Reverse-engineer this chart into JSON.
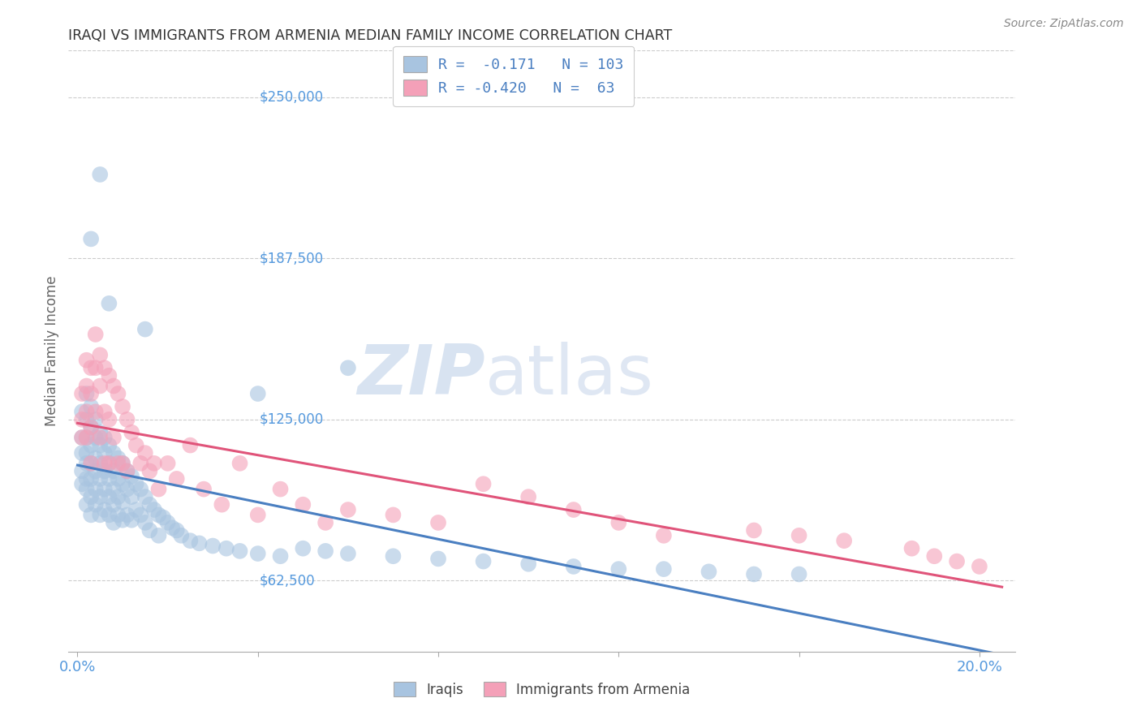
{
  "title": "IRAQI VS IMMIGRANTS FROM ARMENIA MEDIAN FAMILY INCOME CORRELATION CHART",
  "source": "Source: ZipAtlas.com",
  "ylabel": "Median Family Income",
  "ytick_labels": [
    "$62,500",
    "$125,000",
    "$187,500",
    "$250,000"
  ],
  "ytick_values": [
    62500,
    125000,
    187500,
    250000
  ],
  "ymin": 35000,
  "ymax": 268000,
  "xmin": -0.002,
  "xmax": 0.208,
  "watermark_zip": "ZIP",
  "watermark_atlas": "atlas",
  "legend_r1": "R =  -0.171   N = 103",
  "legend_r2": "R = -0.420   N =  63",
  "color_iraqi": "#a8c4e0",
  "color_armenia": "#f4a0b8",
  "line_color_iraqi": "#4a7fc1",
  "line_color_armenia": "#e0547a",
  "title_color": "#333333",
  "axis_label_color": "#5599dd",
  "legend_text_color": "#4a7fc1",
  "background_color": "#ffffff",
  "iraqi_x": [
    0.001,
    0.001,
    0.001,
    0.001,
    0.001,
    0.002,
    0.002,
    0.002,
    0.002,
    0.002,
    0.002,
    0.002,
    0.002,
    0.003,
    0.003,
    0.003,
    0.003,
    0.003,
    0.003,
    0.003,
    0.004,
    0.004,
    0.004,
    0.004,
    0.004,
    0.004,
    0.005,
    0.005,
    0.005,
    0.005,
    0.005,
    0.005,
    0.006,
    0.006,
    0.006,
    0.006,
    0.006,
    0.007,
    0.007,
    0.007,
    0.007,
    0.007,
    0.008,
    0.008,
    0.008,
    0.008,
    0.008,
    0.009,
    0.009,
    0.009,
    0.009,
    0.01,
    0.01,
    0.01,
    0.01,
    0.011,
    0.011,
    0.011,
    0.012,
    0.012,
    0.012,
    0.013,
    0.013,
    0.014,
    0.014,
    0.015,
    0.015,
    0.016,
    0.016,
    0.017,
    0.018,
    0.018,
    0.019,
    0.02,
    0.021,
    0.022,
    0.023,
    0.025,
    0.027,
    0.03,
    0.033,
    0.036,
    0.04,
    0.045,
    0.05,
    0.055,
    0.06,
    0.07,
    0.08,
    0.09,
    0.1,
    0.11,
    0.12,
    0.13,
    0.14,
    0.15,
    0.16,
    0.005,
    0.003,
    0.007,
    0.015,
    0.04,
    0.06
  ],
  "iraqi_y": [
    128000,
    118000,
    112000,
    105000,
    100000,
    135000,
    125000,
    118000,
    112000,
    108000,
    102000,
    98000,
    92000,
    130000,
    122000,
    115000,
    108000,
    102000,
    95000,
    88000,
    125000,
    118000,
    110000,
    105000,
    98000,
    92000,
    120000,
    115000,
    108000,
    102000,
    95000,
    88000,
    118000,
    112000,
    105000,
    98000,
    90000,
    115000,
    108000,
    102000,
    95000,
    88000,
    112000,
    105000,
    98000,
    92000,
    85000,
    110000,
    102000,
    95000,
    88000,
    108000,
    100000,
    93000,
    86000,
    105000,
    98000,
    88000,
    103000,
    95000,
    86000,
    100000,
    90000,
    98000,
    88000,
    95000,
    85000,
    92000,
    82000,
    90000,
    88000,
    80000,
    87000,
    85000,
    83000,
    82000,
    80000,
    78000,
    77000,
    76000,
    75000,
    74000,
    73000,
    72000,
    75000,
    74000,
    73000,
    72000,
    71000,
    70000,
    69000,
    68000,
    67000,
    67000,
    66000,
    65000,
    65000,
    220000,
    195000,
    170000,
    160000,
    135000,
    145000
  ],
  "armenia_x": [
    0.001,
    0.001,
    0.001,
    0.002,
    0.002,
    0.002,
    0.002,
    0.003,
    0.003,
    0.003,
    0.003,
    0.004,
    0.004,
    0.004,
    0.005,
    0.005,
    0.005,
    0.006,
    0.006,
    0.006,
    0.007,
    0.007,
    0.007,
    0.008,
    0.008,
    0.009,
    0.009,
    0.01,
    0.01,
    0.011,
    0.011,
    0.012,
    0.013,
    0.014,
    0.015,
    0.016,
    0.017,
    0.018,
    0.02,
    0.022,
    0.025,
    0.028,
    0.032,
    0.036,
    0.04,
    0.045,
    0.05,
    0.055,
    0.06,
    0.07,
    0.08,
    0.09,
    0.1,
    0.11,
    0.12,
    0.13,
    0.15,
    0.16,
    0.17,
    0.185,
    0.19,
    0.195,
    0.2
  ],
  "armenia_y": [
    135000,
    125000,
    118000,
    148000,
    138000,
    128000,
    118000,
    145000,
    135000,
    122000,
    108000,
    158000,
    145000,
    128000,
    150000,
    138000,
    118000,
    145000,
    128000,
    108000,
    142000,
    125000,
    108000,
    138000,
    118000,
    135000,
    108000,
    130000,
    108000,
    125000,
    105000,
    120000,
    115000,
    108000,
    112000,
    105000,
    108000,
    98000,
    108000,
    102000,
    115000,
    98000,
    92000,
    108000,
    88000,
    98000,
    92000,
    85000,
    90000,
    88000,
    85000,
    100000,
    95000,
    90000,
    85000,
    80000,
    82000,
    80000,
    78000,
    75000,
    72000,
    70000,
    68000
  ]
}
